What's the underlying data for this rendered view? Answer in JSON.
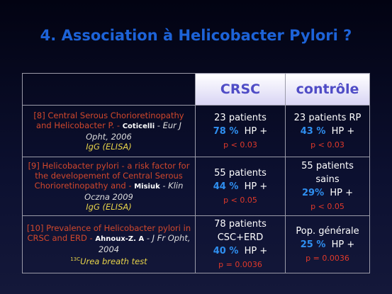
{
  "title": {
    "lead": "4. Association à",
    "emphasis": "Helicobacter Pylori ?"
  },
  "table": {
    "header": [
      "CRSC",
      "contrôle"
    ],
    "rows": [
      {
        "study": {
          "text": "[8]  Central Serous Chorioretinopathy and Helicobacter P. - ",
          "author": "Coticelli",
          "ref": " - Eur J Opht, 2006",
          "method": "IgG  (ELISA)"
        },
        "crsc": {
          "group": "23 patients",
          "pct": "78 %",
          "hp": "HP +",
          "p": "p < 0.03"
        },
        "control": {
          "group": "23 patients RP",
          "pct": "43 %",
          "hp": "HP +",
          "p": "p < 0.03"
        }
      },
      {
        "study": {
          "text": "[9]  Helicobacter pylori - a risk factor for the developement of Central Serous Chorioretinopathy and - ",
          "author": "Misiuk",
          "ref": " - Klin Oczna 2009",
          "method": "IgG (ELISA)"
        },
        "crsc": {
          "group": "55 patients",
          "pct": "44 %",
          "hp": "HP +",
          "p": "p < 0.05"
        },
        "control": {
          "group": "55 patients sains",
          "pct": "29%",
          "hp": "HP +",
          "p": "p < 0.05"
        }
      },
      {
        "study": {
          "text": "[10]  Prevalence of Helicobacter pylori in CRSC and ERD - ",
          "author": "Ahnoux-Z. A",
          "ref": " - J Fr Opht, 2004",
          "sup": "13C",
          "method": "Urea breath test"
        },
        "crsc": {
          "group": "78 patients CSC+ERD",
          "pct": "40 %",
          "hp": "HP +",
          "p": "p = 0.0036"
        },
        "control": {
          "group": "Pop. générale",
          "pct": "25 %",
          "hp": "HP +",
          "p": "p = 0.0036"
        }
      }
    ]
  }
}
